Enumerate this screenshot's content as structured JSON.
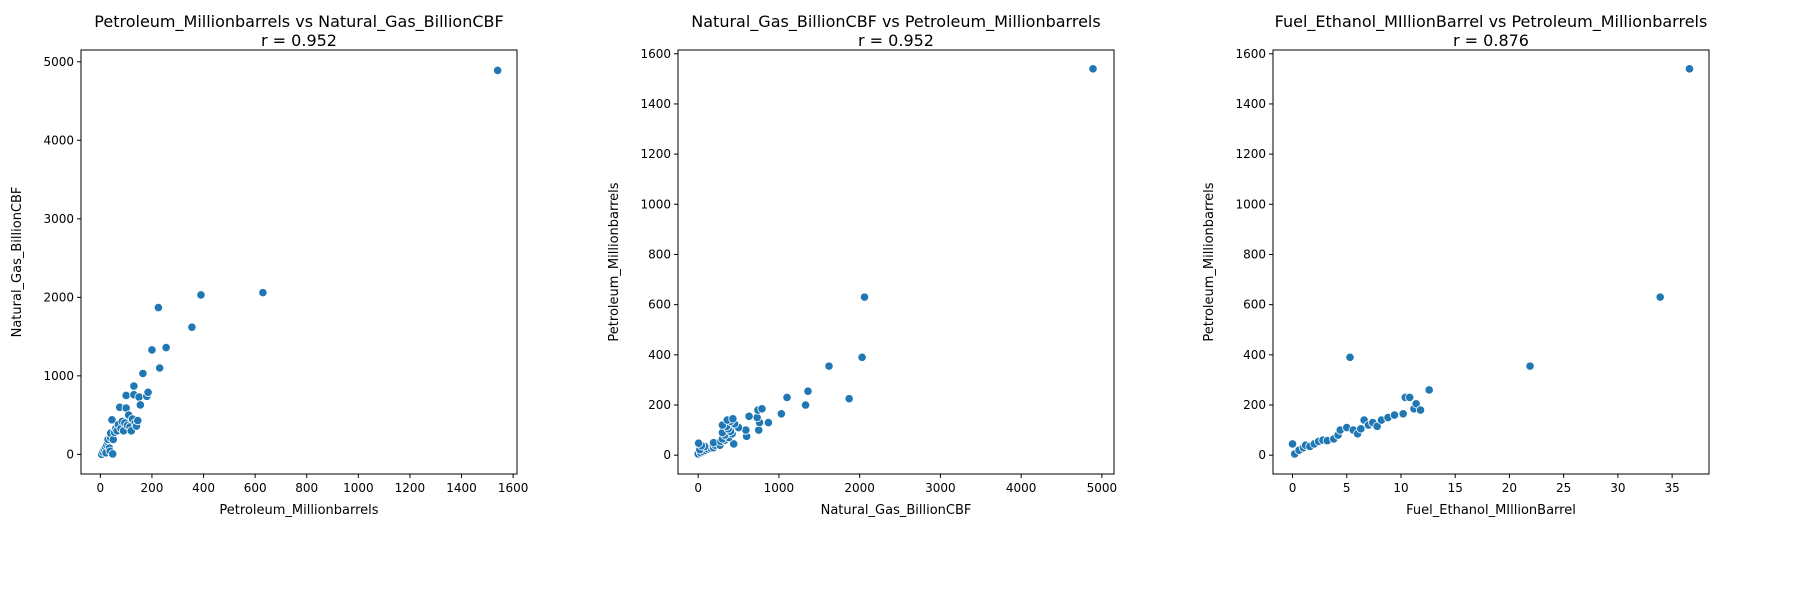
{
  "chart_data": [
    {
      "type": "scatter",
      "title": "Petroleum_Millionbarrels vs Natural_Gas_BillionCBF",
      "subtitle": "r = 0.952",
      "xlabel": "Petroleum_Millionbarrels",
      "ylabel": "Natural_Gas_BillionCBF",
      "xlim": [
        -75,
        1615
      ],
      "ylim": [
        -250,
        5150
      ],
      "xticks": [
        0,
        200,
        400,
        600,
        800,
        1000,
        1200,
        1400,
        1600
      ],
      "yticks": [
        0,
        1000,
        2000,
        3000,
        4000,
        5000
      ],
      "grid": false,
      "color": "#1f77b4",
      "points": [
        [
          5,
          0
        ],
        [
          10,
          30
        ],
        [
          15,
          60
        ],
        [
          20,
          90
        ],
        [
          22,
          20
        ],
        [
          25,
          120
        ],
        [
          28,
          160
        ],
        [
          30,
          190
        ],
        [
          35,
          80
        ],
        [
          38,
          40
        ],
        [
          40,
          210
        ],
        [
          40,
          270
        ],
        [
          45,
          440
        ],
        [
          48,
          5
        ],
        [
          50,
          190
        ],
        [
          55,
          280
        ],
        [
          60,
          330
        ],
        [
          65,
          300
        ],
        [
          70,
          380
        ],
        [
          75,
          600
        ],
        [
          80,
          330
        ],
        [
          85,
          420
        ],
        [
          90,
          300
        ],
        [
          95,
          400
        ],
        [
          100,
          590
        ],
        [
          100,
          750
        ],
        [
          105,
          370
        ],
        [
          110,
          500
        ],
        [
          115,
          350
        ],
        [
          120,
          300
        ],
        [
          125,
          450
        ],
        [
          130,
          760
        ],
        [
          130,
          870
        ],
        [
          135,
          400
        ],
        [
          140,
          360
        ],
        [
          145,
          430
        ],
        [
          150,
          730
        ],
        [
          155,
          630
        ],
        [
          165,
          1030
        ],
        [
          180,
          740
        ],
        [
          185,
          790
        ],
        [
          200,
          1330
        ],
        [
          225,
          1870
        ],
        [
          230,
          1100
        ],
        [
          255,
          1360
        ],
        [
          355,
          1620
        ],
        [
          390,
          2030
        ],
        [
          630,
          2060
        ],
        [
          1540,
          4890
        ]
      ]
    },
    {
      "type": "scatter",
      "title": "Natural_Gas_BillionCBF vs Petroleum_Millionbarrels",
      "subtitle": "r = 0.952",
      "xlabel": "Natural_Gas_BillionCBF",
      "ylabel": "Petroleum_Millionbarrels",
      "xlim": [
        -250,
        5150
      ],
      "ylim": [
        -75,
        1615
      ],
      "xticks": [
        0,
        1000,
        2000,
        3000,
        4000,
        5000
      ],
      "yticks": [
        0,
        200,
        400,
        600,
        800,
        1000,
        1200,
        1400,
        1600
      ],
      "grid": false,
      "color": "#1f77b4",
      "points": [
        [
          0,
          5
        ],
        [
          30,
          10
        ],
        [
          60,
          15
        ],
        [
          90,
          20
        ],
        [
          20,
          22
        ],
        [
          120,
          25
        ],
        [
          160,
          28
        ],
        [
          190,
          30
        ],
        [
          80,
          35
        ],
        [
          40,
          38
        ],
        [
          210,
          40
        ],
        [
          270,
          40
        ],
        [
          440,
          45
        ],
        [
          5,
          48
        ],
        [
          190,
          50
        ],
        [
          280,
          55
        ],
        [
          330,
          60
        ],
        [
          300,
          65
        ],
        [
          380,
          70
        ],
        [
          600,
          75
        ],
        [
          330,
          80
        ],
        [
          420,
          85
        ],
        [
          300,
          90
        ],
        [
          400,
          95
        ],
        [
          590,
          100
        ],
        [
          750,
          100
        ],
        [
          370,
          105
        ],
        [
          500,
          110
        ],
        [
          350,
          115
        ],
        [
          300,
          120
        ],
        [
          450,
          125
        ],
        [
          760,
          130
        ],
        [
          870,
          130
        ],
        [
          400,
          135
        ],
        [
          360,
          140
        ],
        [
          430,
          145
        ],
        [
          730,
          150
        ],
        [
          630,
          155
        ],
        [
          1030,
          165
        ],
        [
          740,
          180
        ],
        [
          790,
          185
        ],
        [
          1330,
          200
        ],
        [
          1870,
          225
        ],
        [
          1100,
          230
        ],
        [
          1360,
          255
        ],
        [
          1620,
          355
        ],
        [
          2030,
          390
        ],
        [
          2060,
          630
        ],
        [
          4890,
          1540
        ]
      ]
    },
    {
      "type": "scatter",
      "title": "Fuel_Ethanol_MIllionBarrel vs Petroleum_Millionbarrels",
      "subtitle": "r = 0.876",
      "xlabel": "Fuel_Ethanol_MIllionBarrel",
      "ylabel": "Petroleum_Millionbarrels",
      "xlim": [
        -1.8,
        38.4
      ],
      "ylim": [
        -75,
        1615
      ],
      "xticks": [
        0,
        5,
        10,
        15,
        20,
        25,
        30,
        35
      ],
      "yticks": [
        0,
        200,
        400,
        600,
        800,
        1000,
        1200,
        1400,
        1600
      ],
      "grid": false,
      "color": "#1f77b4",
      "points": [
        [
          0,
          45
        ],
        [
          0.2,
          5
        ],
        [
          0.6,
          20
        ],
        [
          1,
          30
        ],
        [
          1.2,
          40
        ],
        [
          1.6,
          35
        ],
        [
          2,
          45
        ],
        [
          2.4,
          55
        ],
        [
          2.8,
          60
        ],
        [
          3.2,
          58
        ],
        [
          3.8,
          65
        ],
        [
          4.2,
          80
        ],
        [
          4.4,
          100
        ],
        [
          5,
          110
        ],
        [
          5.3,
          390
        ],
        [
          5.6,
          100
        ],
        [
          6,
          85
        ],
        [
          6.3,
          105
        ],
        [
          6.6,
          140
        ],
        [
          7,
          120
        ],
        [
          7.4,
          130
        ],
        [
          7.8,
          115
        ],
        [
          8.2,
          140
        ],
        [
          8.8,
          150
        ],
        [
          9.4,
          160
        ],
        [
          10.2,
          165
        ],
        [
          10.4,
          230
        ],
        [
          10.8,
          230
        ],
        [
          11.2,
          185
        ],
        [
          11.4,
          205
        ],
        [
          11.8,
          180
        ],
        [
          12.6,
          260
        ],
        [
          21.9,
          355
        ],
        [
          33.9,
          630
        ],
        [
          36.6,
          1540
        ]
      ]
    }
  ]
}
